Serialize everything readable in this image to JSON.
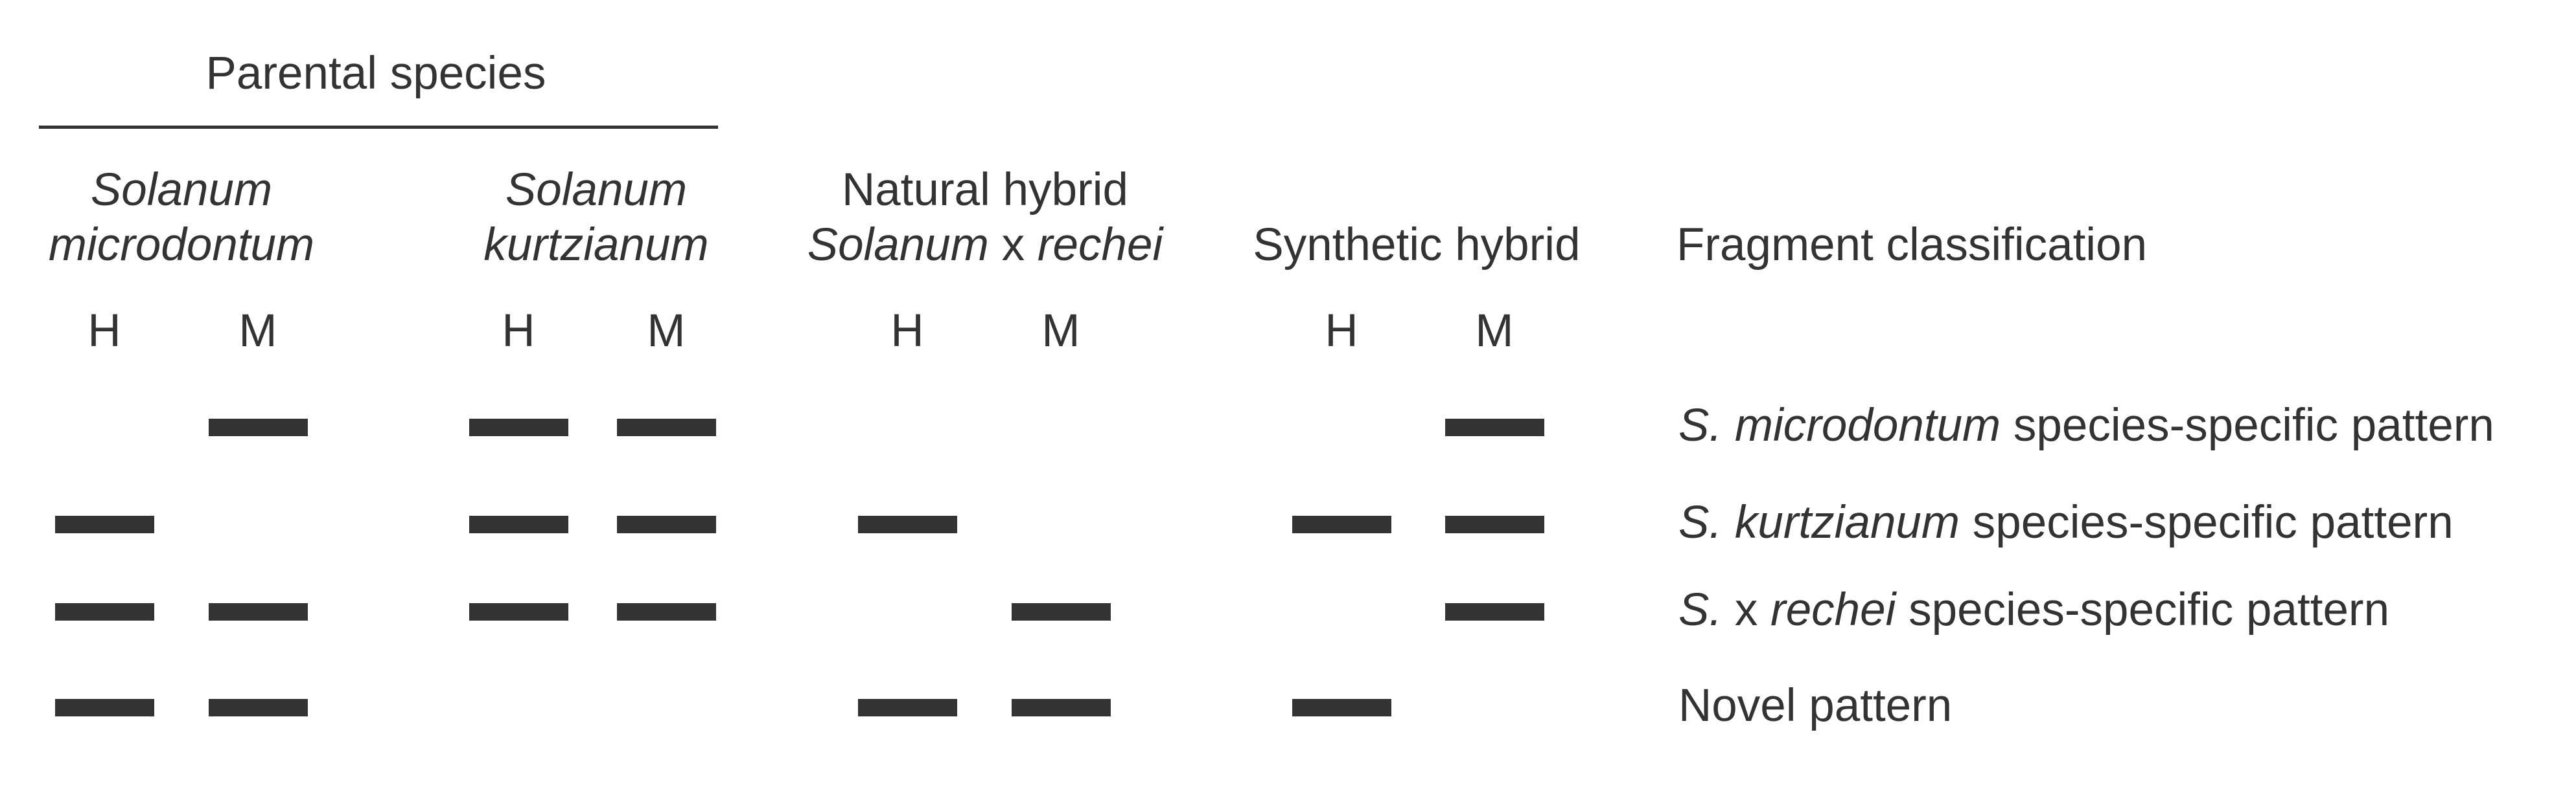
{
  "group_header": "Parental species",
  "columns": [
    {
      "label_line1": [
        {
          "text": "Solanum",
          "italic": true
        }
      ],
      "label_line2": [
        {
          "text": "microdontum",
          "italic": true
        }
      ]
    },
    {
      "label_line1": [
        {
          "text": "Solanum",
          "italic": true
        }
      ],
      "label_line2": [
        {
          "text": "kurtzianum",
          "italic": true
        }
      ]
    },
    {
      "label_line1": [
        {
          "text": "Natural hybrid",
          "italic": false
        }
      ],
      "label_line2": [
        {
          "text": "Solanum",
          "italic": true
        },
        {
          "text": " x ",
          "italic": false
        },
        {
          "text": "rechei",
          "italic": true
        }
      ]
    },
    {
      "label_line1": [],
      "label_line2": [
        {
          "text": "Synthetic hybrid",
          "italic": false
        }
      ]
    }
  ],
  "lane_labels": [
    "H",
    "M"
  ],
  "classification_header": "Fragment classification",
  "rows": [
    {
      "label": [
        {
          "text": "S.",
          "italic": true
        },
        {
          "text": " ",
          "italic": false
        },
        {
          "text": "microdontum",
          "italic": true
        },
        {
          "text": " species-specific pattern",
          "italic": false
        }
      ],
      "bands": [
        0,
        1,
        1,
        1,
        0,
        0,
        0,
        1
      ]
    },
    {
      "label": [
        {
          "text": "S.",
          "italic": true
        },
        {
          "text": " ",
          "italic": false
        },
        {
          "text": "kurtzianum",
          "italic": true
        },
        {
          "text": " species-specific pattern",
          "italic": false
        }
      ],
      "bands": [
        1,
        0,
        1,
        1,
        1,
        0,
        1,
        1
      ]
    },
    {
      "label": [
        {
          "text": "S.",
          "italic": true
        },
        {
          "text": " x ",
          "italic": false
        },
        {
          "text": "rechei",
          "italic": true
        },
        {
          "text": " species-specific pattern",
          "italic": false
        }
      ],
      "bands": [
        1,
        1,
        1,
        1,
        0,
        1,
        0,
        1
      ]
    },
    {
      "label": [
        {
          "text": "Novel pattern",
          "italic": false
        }
      ],
      "bands": [
        1,
        1,
        0,
        0,
        1,
        1,
        1,
        0
      ]
    }
  ],
  "colors": {
    "band": "#333333",
    "text": "#333333",
    "background": "#ffffff"
  }
}
